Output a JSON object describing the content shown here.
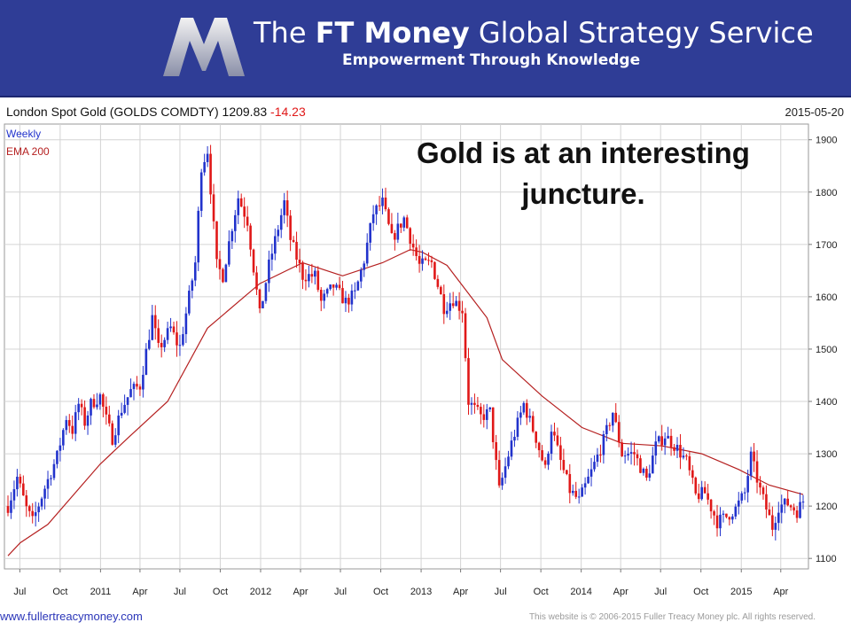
{
  "banner": {
    "title_prefix": "The ",
    "title_bold": "FT Money",
    "title_suffix": " Global Strategy Service",
    "subtitle": "Empowerment Through Knowledge",
    "logo_icon": "m-logo-icon"
  },
  "header": {
    "instrument": "London Spot Gold (GOLDS COMDTY) 1209.83",
    "change": "-14.23",
    "date": "2015-05-20"
  },
  "legend": {
    "period": "Weekly",
    "ema": "EMA 200"
  },
  "annotation": {
    "line1": "Gold is at an interesting",
    "line2": "juncture."
  },
  "footer": {
    "website": "www.fullertreacymoney.com",
    "copyright": "This website is © 2006-2015 Fuller Treacy Money plc. All rights reserved."
  },
  "colors": {
    "up": "#2233cc",
    "down": "#e01818",
    "ema": "#b52020",
    "banner": "#2f3d96",
    "grid": "#d4d4d4"
  },
  "chart_data": {
    "type": "candlestick",
    "title": "London Spot Gold (GOLDS COMDTY) 1209.83 -14.23",
    "frequency": "Weekly",
    "overlay": "EMA 200",
    "y_range": [
      1080,
      1930
    ],
    "y_ticks": [
      1100,
      1200,
      1300,
      1400,
      1500,
      1600,
      1700,
      1800,
      1900
    ],
    "x_range": [
      "2010-06-04",
      "2015-05-22"
    ],
    "x_ticks": [
      {
        "label": "Jul",
        "date": "2010-07-01"
      },
      {
        "label": "Oct",
        "date": "2010-10-01"
      },
      {
        "label": "2011",
        "date": "2011-01-01"
      },
      {
        "label": "Apr",
        "date": "2011-04-01"
      },
      {
        "label": "Jul",
        "date": "2011-07-01"
      },
      {
        "label": "Oct",
        "date": "2011-10-01"
      },
      {
        "label": "2012",
        "date": "2012-01-01"
      },
      {
        "label": "Apr",
        "date": "2012-04-01"
      },
      {
        "label": "Jul",
        "date": "2012-07-01"
      },
      {
        "label": "Oct",
        "date": "2012-10-01"
      },
      {
        "label": "2013",
        "date": "2013-01-01"
      },
      {
        "label": "Apr",
        "date": "2013-04-01"
      },
      {
        "label": "Jul",
        "date": "2013-07-01"
      },
      {
        "label": "Oct",
        "date": "2013-10-01"
      },
      {
        "label": "2014",
        "date": "2014-01-01"
      },
      {
        "label": "Apr",
        "date": "2014-04-01"
      },
      {
        "label": "Jul",
        "date": "2014-07-01"
      },
      {
        "label": "Oct",
        "date": "2014-10-01"
      },
      {
        "label": "2015",
        "date": "2015-01-01"
      },
      {
        "label": "Apr",
        "date": "2015-04-01"
      }
    ],
    "weekly_close_anchors": [
      [
        "2010-06-04",
        1200
      ],
      [
        "2010-06-25",
        1255
      ],
      [
        "2010-07-16",
        1195
      ],
      [
        "2010-07-30",
        1170
      ],
      [
        "2010-08-27",
        1235
      ],
      [
        "2010-09-24",
        1295
      ],
      [
        "2010-10-15",
        1370
      ],
      [
        "2010-10-29",
        1345
      ],
      [
        "2010-11-12",
        1395
      ],
      [
        "2010-11-26",
        1360
      ],
      [
        "2010-12-10",
        1395
      ],
      [
        "2010-12-31",
        1410
      ],
      [
        "2011-01-14",
        1365
      ],
      [
        "2011-01-28",
        1330
      ],
      [
        "2011-02-18",
        1385
      ],
      [
        "2011-03-11",
        1420
      ],
      [
        "2011-04-01",
        1430
      ],
      [
        "2011-04-29",
        1560
      ],
      [
        "2011-05-13",
        1500
      ],
      [
        "2011-06-10",
        1540
      ],
      [
        "2011-06-30",
        1500
      ],
      [
        "2011-07-22",
        1600
      ],
      [
        "2011-08-05",
        1665
      ],
      [
        "2011-08-19",
        1850
      ],
      [
        "2011-09-02",
        1880
      ],
      [
        "2011-09-23",
        1660
      ],
      [
        "2011-10-07",
        1640
      ],
      [
        "2011-10-28",
        1735
      ],
      [
        "2011-11-11",
        1790
      ],
      [
        "2011-12-02",
        1745
      ],
      [
        "2011-12-30",
        1565
      ],
      [
        "2012-01-20",
        1660
      ],
      [
        "2012-02-24",
        1780
      ],
      [
        "2012-03-09",
        1710
      ],
      [
        "2012-04-06",
        1640
      ],
      [
        "2012-05-04",
        1640
      ],
      [
        "2012-05-18",
        1590
      ],
      [
        "2012-06-15",
        1620
      ],
      [
        "2012-07-13",
        1590
      ],
      [
        "2012-08-03",
        1605
      ],
      [
        "2012-08-24",
        1670
      ],
      [
        "2012-09-14",
        1760
      ],
      [
        "2012-10-05",
        1780
      ],
      [
        "2012-10-26",
        1710
      ],
      [
        "2012-11-23",
        1750
      ],
      [
        "2012-12-14",
        1695
      ],
      [
        "2012-12-28",
        1660
      ],
      [
        "2013-01-25",
        1665
      ],
      [
        "2013-02-22",
        1580
      ],
      [
        "2013-03-15",
        1595
      ],
      [
        "2013-04-05",
        1575
      ],
      [
        "2013-04-19",
        1400
      ],
      [
        "2013-05-17",
        1370
      ],
      [
        "2013-06-07",
        1380
      ],
      [
        "2013-06-28",
        1230
      ],
      [
        "2013-07-26",
        1320
      ],
      [
        "2013-08-23",
        1395
      ],
      [
        "2013-09-20",
        1330
      ],
      [
        "2013-10-11",
        1270
      ],
      [
        "2013-10-25",
        1350
      ],
      [
        "2013-11-15",
        1285
      ],
      [
        "2013-12-06",
        1230
      ],
      [
        "2013-12-27",
        1210
      ],
      [
        "2014-01-24",
        1265
      ],
      [
        "2014-02-21",
        1325
      ],
      [
        "2014-03-14",
        1380
      ],
      [
        "2014-04-04",
        1300
      ],
      [
        "2014-05-02",
        1300
      ],
      [
        "2014-05-30",
        1250
      ],
      [
        "2014-06-20",
        1315
      ],
      [
        "2014-07-11",
        1335
      ],
      [
        "2014-08-08",
        1310
      ],
      [
        "2014-08-29",
        1285
      ],
      [
        "2014-09-19",
        1220
      ],
      [
        "2014-10-10",
        1225
      ],
      [
        "2014-11-07",
        1170
      ],
      [
        "2014-11-28",
        1180
      ],
      [
        "2014-12-19",
        1195
      ],
      [
        "2015-01-09",
        1225
      ],
      [
        "2015-01-23",
        1295
      ],
      [
        "2015-02-13",
        1230
      ],
      [
        "2015-03-13",
        1160
      ],
      [
        "2015-03-27",
        1200
      ],
      [
        "2015-04-17",
        1205
      ],
      [
        "2015-05-08",
        1190
      ],
      [
        "2015-05-22",
        1210
      ]
    ],
    "ema_anchors": [
      [
        "2010-06-04",
        1105
      ],
      [
        "2010-07-02",
        1130
      ],
      [
        "2010-09-03",
        1165
      ],
      [
        "2010-12-31",
        1280
      ],
      [
        "2011-03-04",
        1330
      ],
      [
        "2011-06-03",
        1400
      ],
      [
        "2011-09-02",
        1540
      ],
      [
        "2011-12-30",
        1625
      ],
      [
        "2012-04-06",
        1665
      ],
      [
        "2012-07-06",
        1640
      ],
      [
        "2012-10-05",
        1665
      ],
      [
        "2012-12-07",
        1690
      ],
      [
        "2013-01-04",
        1685
      ],
      [
        "2013-03-01",
        1660
      ],
      [
        "2013-05-31",
        1560
      ],
      [
        "2013-07-05",
        1480
      ],
      [
        "2013-10-04",
        1410
      ],
      [
        "2014-01-03",
        1350
      ],
      [
        "2014-04-04",
        1320
      ],
      [
        "2014-07-04",
        1315
      ],
      [
        "2014-10-03",
        1300
      ],
      [
        "2014-12-26",
        1270
      ],
      [
        "2015-03-06",
        1240
      ],
      [
        "2015-05-22",
        1222
      ]
    ]
  }
}
